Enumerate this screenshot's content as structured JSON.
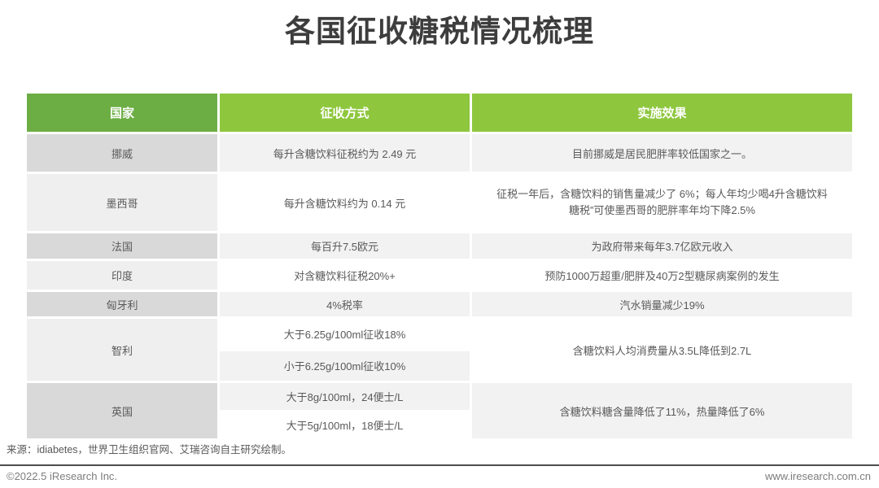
{
  "page_title": "各国征收糖税情况梳理",
  "colors": {
    "header_country_green": "#6cae44",
    "header_light_green": "#8ec73e",
    "country_cell_dark_gray": "#d9d9d9",
    "country_cell_light_gray": "#efefef",
    "row_gray": "#f2f2f2",
    "text_gray": "#595959"
  },
  "table": {
    "headers": [
      "国家",
      "征收方式",
      "实施效果"
    ],
    "rows": [
      {
        "country": "挪威",
        "method": "每升含糖饮料征税约为 2.49 元",
        "effect": "目前挪威是居民肥胖率较低国家之一。"
      },
      {
        "country": "墨西哥",
        "method": "每升含糖饮料约为 0.14 元",
        "effect_line1": "征税一年后，含糖饮料的销售量减少了 6%；每人年均少喝4升含糖饮料",
        "effect_line2": "糖税”可使墨西哥的肥胖率年均下降2.5%"
      },
      {
        "country": "法国",
        "method": "每百升7.5欧元",
        "effect": "为政府带来每年3.7亿欧元收入"
      },
      {
        "country": "印度",
        "method": "对含糖饮料征税20%+",
        "effect": "预防1000万超重/肥胖及40万2型糖尿病案例的发生"
      },
      {
        "country": "匈牙利",
        "method": "4%税率",
        "effect": "汽水销量减少19%"
      },
      {
        "country": "智利",
        "methods": [
          "大于6.25g/100ml征收18%",
          "小于6.25g/100ml征收10%"
        ],
        "effect": "含糖饮料人均消费量从3.5L降低到2.7L"
      },
      {
        "country": "英国",
        "methods": [
          "大于8g/100ml，24便士/L",
          "大于5g/100ml，18便士/L"
        ],
        "effect": "含糖饮料糖含量降低了11%，热量降低了6%"
      }
    ]
  },
  "source_note": "来源：idiabetes，世界卫生组织官网、艾瑞咨询自主研究绘制。",
  "footer": {
    "copyright": "©2022.5 iResearch Inc.",
    "website": "www.iresearch.com.cn"
  }
}
